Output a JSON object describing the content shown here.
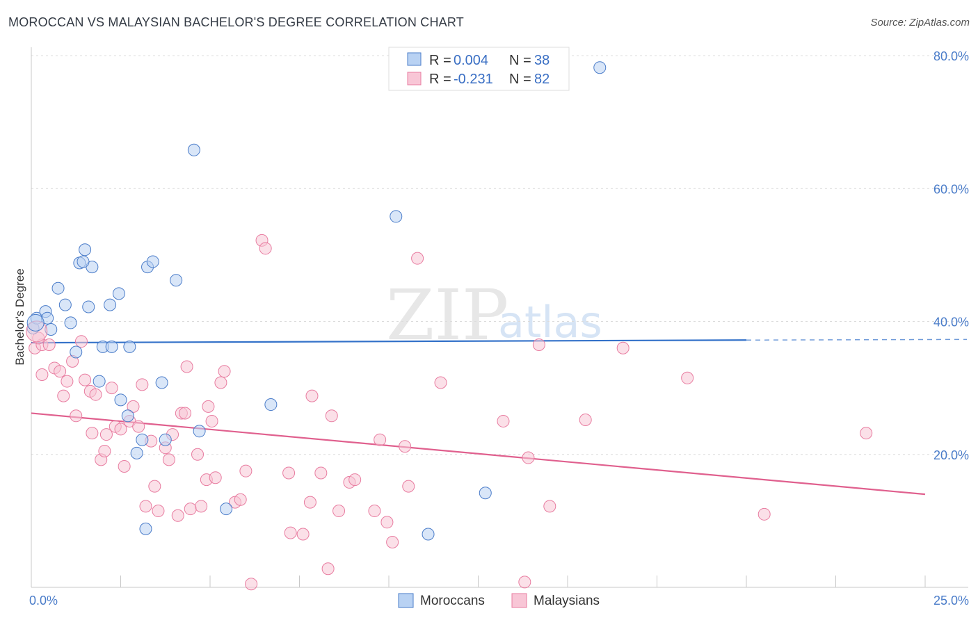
{
  "header": {
    "title": "MOROCCAN VS MALAYSIAN BACHELOR'S DEGREE CORRELATION CHART",
    "source": "Source: ZipAtlas.com"
  },
  "colors": {
    "blue": "#4a7cc9",
    "blue_fill": "#b9d2f3",
    "blue_line": "#3472c9",
    "pink": "#e87ca0",
    "pink_fill": "#f8c6d6",
    "pink_line": "#e0608e"
  },
  "chart_data": {
    "type": "scatter",
    "title": "MOROCCAN VS MALAYSIAN BACHELOR'S DEGREE CORRELATION CHART",
    "xlabel": "",
    "ylabel": "Bachelor's Degree",
    "xlim": [
      0,
      25
    ],
    "ylim": [
      0,
      80
    ],
    "x_tick_labels": [
      {
        "value": 0,
        "label": "0.0%"
      },
      {
        "value": 25,
        "label": "25.0%"
      }
    ],
    "y_tick_labels": [
      {
        "value": 20,
        "label": "20.0%"
      },
      {
        "value": 40,
        "label": "40.0%"
      },
      {
        "value": 60,
        "label": "60.0%"
      },
      {
        "value": 80,
        "label": "80.0%"
      }
    ],
    "watermark": {
      "part1": "ZIP",
      "part2": "atlas"
    },
    "legend": [
      {
        "series": "Moroccans",
        "r_label": "R =",
        "r_value": "0.004",
        "n_label": "N =",
        "n_value": "38"
      },
      {
        "series": "Malaysians",
        "r_label": "R =",
        "r_value": "-0.231",
        "n_label": "N =",
        "n_value": "82"
      }
    ],
    "series": [
      {
        "name": "Moroccans",
        "trend": {
          "x0": 0,
          "y0": 36.8,
          "x1": 20,
          "y1": 37.2,
          "dashed_to": 25
        },
        "points": [
          [
            0.05,
            39.0
          ],
          [
            0.15,
            40.5
          ],
          [
            0.4,
            41.5
          ],
          [
            0.45,
            40.5
          ],
          [
            0.55,
            38.8
          ],
          [
            0.75,
            45.0
          ],
          [
            0.95,
            42.5
          ],
          [
            1.1,
            39.8
          ],
          [
            1.25,
            35.4
          ],
          [
            1.35,
            48.8
          ],
          [
            1.5,
            50.8
          ],
          [
            1.6,
            42.2
          ],
          [
            1.7,
            48.2
          ],
          [
            1.9,
            31.0
          ],
          [
            2.0,
            36.2
          ],
          [
            2.2,
            42.5
          ],
          [
            2.25,
            36.2
          ],
          [
            2.45,
            44.2
          ],
          [
            2.5,
            28.2
          ],
          [
            2.7,
            25.8
          ],
          [
            2.75,
            36.2
          ],
          [
            2.95,
            20.2
          ],
          [
            3.1,
            22.2
          ],
          [
            3.25,
            48.2
          ],
          [
            3.4,
            49.0
          ],
          [
            3.65,
            30.8
          ],
          [
            3.75,
            22.2
          ],
          [
            4.05,
            46.2
          ],
          [
            4.55,
            65.8
          ],
          [
            4.7,
            23.5
          ],
          [
            5.45,
            11.8
          ],
          [
            6.7,
            27.5
          ],
          [
            10.2,
            55.8
          ],
          [
            11.1,
            8.0
          ],
          [
            12.7,
            14.2
          ],
          [
            15.9,
            78.2
          ],
          [
            3.2,
            8.8
          ],
          [
            1.45,
            49.0
          ]
        ]
      },
      {
        "name": "Malaysians",
        "trend": {
          "x0": 0,
          "y0": 26.2,
          "x1": 25,
          "y1": 14.0
        },
        "points": [
          [
            0.1,
            36.0
          ],
          [
            0.3,
            36.5
          ],
          [
            0.5,
            36.5
          ],
          [
            0.65,
            33.0
          ],
          [
            0.8,
            32.5
          ],
          [
            0.9,
            28.8
          ],
          [
            1.0,
            31.0
          ],
          [
            1.15,
            34.0
          ],
          [
            1.25,
            25.8
          ],
          [
            1.4,
            37.0
          ],
          [
            1.5,
            31.2
          ],
          [
            1.65,
            29.5
          ],
          [
            1.7,
            23.2
          ],
          [
            1.8,
            29.0
          ],
          [
            1.95,
            19.2
          ],
          [
            2.05,
            20.5
          ],
          [
            2.1,
            23.0
          ],
          [
            2.25,
            30.0
          ],
          [
            2.35,
            24.2
          ],
          [
            2.5,
            23.8
          ],
          [
            2.6,
            18.2
          ],
          [
            2.75,
            25.0
          ],
          [
            2.85,
            27.2
          ],
          [
            3.0,
            24.2
          ],
          [
            3.1,
            30.5
          ],
          [
            3.2,
            12.2
          ],
          [
            3.35,
            22.0
          ],
          [
            3.45,
            15.2
          ],
          [
            3.55,
            11.5
          ],
          [
            3.75,
            21.0
          ],
          [
            3.85,
            19.2
          ],
          [
            3.95,
            23.0
          ],
          [
            4.1,
            10.8
          ],
          [
            4.2,
            26.2
          ],
          [
            4.3,
            26.2
          ],
          [
            4.35,
            33.2
          ],
          [
            4.45,
            11.8
          ],
          [
            4.65,
            20.0
          ],
          [
            4.75,
            12.2
          ],
          [
            4.9,
            16.2
          ],
          [
            4.95,
            27.2
          ],
          [
            5.05,
            25.0
          ],
          [
            5.15,
            16.5
          ],
          [
            5.3,
            30.8
          ],
          [
            5.4,
            32.5
          ],
          [
            5.7,
            12.8
          ],
          [
            5.85,
            13.2
          ],
          [
            6.0,
            17.5
          ],
          [
            6.15,
            0.5
          ],
          [
            6.45,
            52.2
          ],
          [
            6.55,
            51.0
          ],
          [
            7.2,
            17.2
          ],
          [
            7.25,
            8.2
          ],
          [
            7.6,
            8.0
          ],
          [
            7.8,
            12.8
          ],
          [
            7.85,
            28.8
          ],
          [
            8.1,
            17.2
          ],
          [
            8.3,
            2.8
          ],
          [
            8.4,
            25.8
          ],
          [
            8.6,
            11.5
          ],
          [
            8.9,
            15.8
          ],
          [
            9.05,
            16.2
          ],
          [
            9.6,
            11.5
          ],
          [
            9.75,
            22.2
          ],
          [
            9.95,
            9.8
          ],
          [
            10.1,
            6.8
          ],
          [
            10.45,
            21.2
          ],
          [
            10.55,
            15.2
          ],
          [
            10.8,
            49.5
          ],
          [
            11.45,
            30.8
          ],
          [
            13.2,
            25.0
          ],
          [
            13.8,
            0.8
          ],
          [
            13.9,
            19.5
          ],
          [
            14.2,
            36.5
          ],
          [
            14.5,
            12.2
          ],
          [
            15.5,
            25.2
          ],
          [
            16.55,
            36.0
          ],
          [
            18.35,
            31.5
          ],
          [
            20.5,
            11.0
          ],
          [
            23.35,
            23.2
          ],
          [
            0.3,
            32.0
          ],
          [
            0.2,
            37.5
          ]
        ]
      }
    ]
  }
}
